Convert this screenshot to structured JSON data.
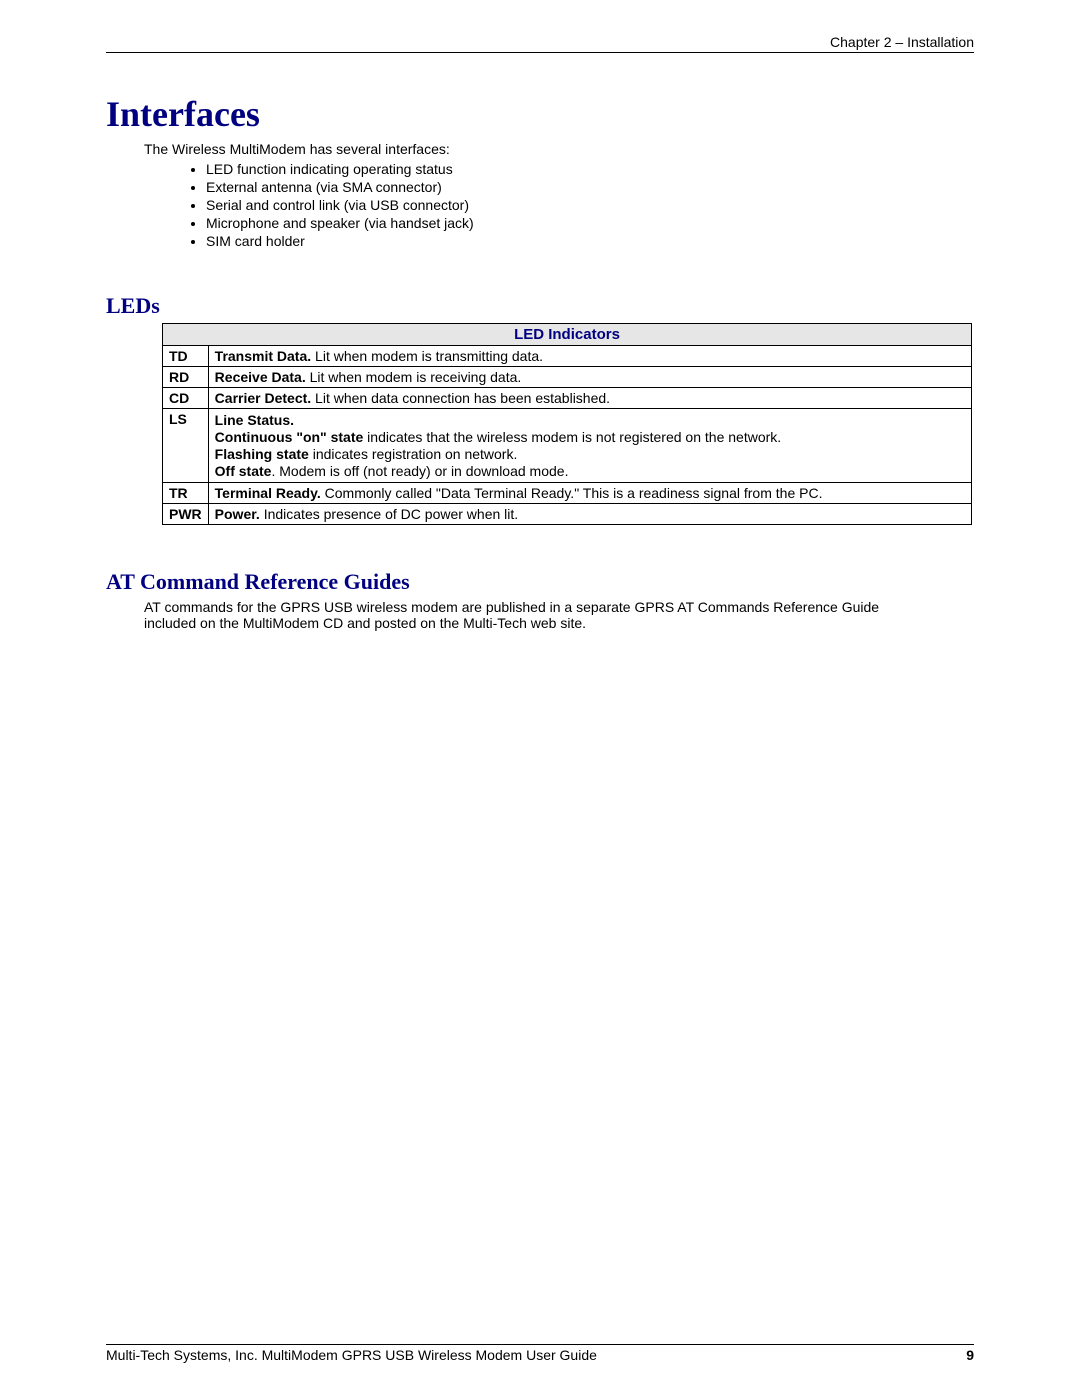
{
  "header": {
    "chapter": "Chapter 2 – Installation"
  },
  "title": "Interfaces",
  "intro": "The Wireless MultiModem has several interfaces:",
  "bullets": [
    "LED function indicating operating status",
    "External antenna (via SMA connector)",
    "Serial and control link (via USB connector)",
    "Microphone and speaker (via handset jack)",
    "SIM card holder"
  ],
  "leds": {
    "heading": "LEDs",
    "tableTitle": "LED Indicators",
    "rows": [
      {
        "code": "TD",
        "bold": "Transmit Data.",
        "rest": " Lit when modem is transmitting data."
      },
      {
        "code": "RD",
        "bold": "Receive Data.",
        "rest": " Lit when modem is receiving data."
      },
      {
        "code": "CD",
        "bold": "Carrier Detect.",
        "rest": " Lit when data connection has been established."
      },
      {
        "code": "LS",
        "lines": [
          {
            "bold": "Line Status.",
            "rest": ""
          },
          {
            "bold": "Continuous \"on\" state",
            "rest": " indicates that the wireless modem is not registered on the network."
          },
          {
            "bold": "Flashing state",
            "rest": " indicates registration on network."
          },
          {
            "bold": "Off state",
            "rest": ". Modem is off (not ready) or in download mode."
          }
        ]
      },
      {
        "code": "TR",
        "bold": "Terminal Ready.",
        "rest": " Commonly called \"Data Terminal Ready.\"  This is a readiness signal from the PC."
      },
      {
        "code": "PWR",
        "bold": "Power.",
        "rest": " Indicates presence of DC power when lit."
      }
    ]
  },
  "atGuides": {
    "heading": "AT Command Reference Guides",
    "text": "AT commands for the GPRS USB wireless modem are published in a separate GPRS AT Commands Reference Guide included on the MultiModem CD and posted on the Multi-Tech web site."
  },
  "footer": {
    "text": "Multi-Tech Systems, Inc. MultiModem GPRS USB Wireless Modem User Guide",
    "page": "9"
  },
  "colors": {
    "headingBlue": "#000080",
    "tableHeaderBg": "#e6e6e6",
    "border": "#000000",
    "text": "#000000",
    "background": "#ffffff"
  },
  "typography": {
    "h1_fontsize": 36,
    "h2_fontsize": 22,
    "body_fontsize": 14,
    "heading_font": "Georgia serif",
    "body_font": "Arial sans-serif"
  }
}
